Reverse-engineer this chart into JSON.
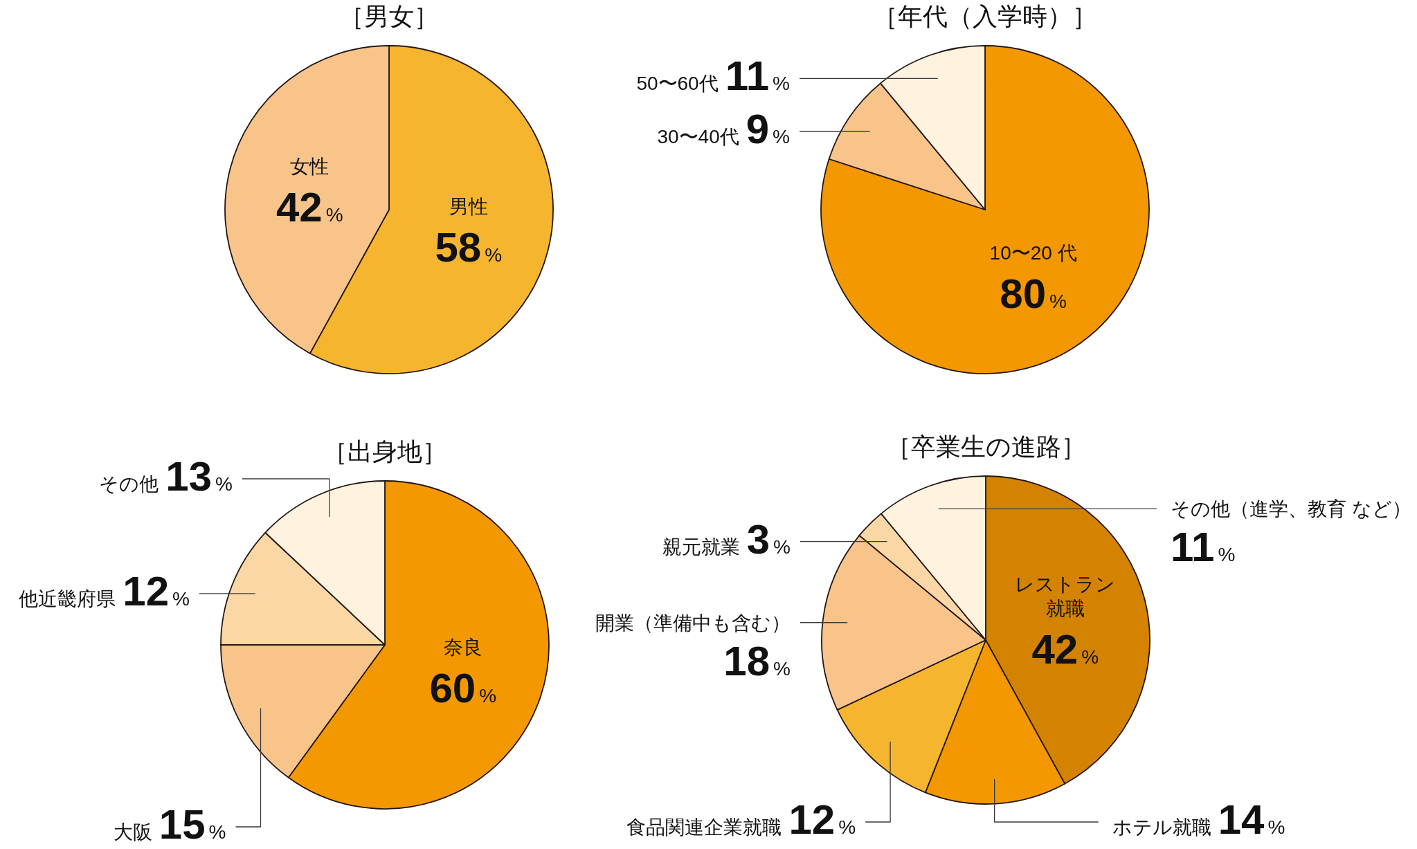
{
  "chart_data": [
    {
      "type": "pie",
      "title": "［男女］",
      "categories": [
        "男性",
        "女性"
      ],
      "values": [
        58,
        42
      ],
      "colors": [
        "#f6b52e",
        "#f8c48a"
      ],
      "value_labels": [
        "58%",
        "42%"
      ]
    },
    {
      "type": "pie",
      "title": "［年代（入学時）］",
      "categories": [
        "10〜20 代",
        "30〜40代",
        "50〜60代"
      ],
      "values": [
        80,
        9,
        11
      ],
      "colors": [
        "#f39800",
        "#f8c48a",
        "#fff3e0"
      ],
      "value_labels": [
        "80%",
        "9%",
        "11%"
      ]
    },
    {
      "type": "pie",
      "title": "［出身地］",
      "categories": [
        "奈良",
        "大阪",
        "他近畿府県",
        "その他"
      ],
      "values": [
        60,
        15,
        12,
        13
      ],
      "colors": [
        "#f39800",
        "#f8c48a",
        "#fbd7a5",
        "#fff3e0"
      ],
      "value_labels": [
        "60%",
        "15%",
        "12%",
        "13%"
      ]
    },
    {
      "type": "pie",
      "title": "［卒業生の進路］",
      "categories": [
        "レストラン就職",
        "ホテル就職",
        "食品関連企業就職",
        "開業（準備中も含む）",
        "親元就業",
        "その他（進学、教育 など）"
      ],
      "values": [
        42,
        14,
        12,
        18,
        3,
        11
      ],
      "colors": [
        "#d48300",
        "#f39800",
        "#f6b52e",
        "#f8c48a",
        "#fbd7a5",
        "#fff3e0"
      ],
      "value_labels": [
        "42%",
        "14%",
        "12%",
        "18%",
        "3%",
        "11%"
      ]
    }
  ]
}
